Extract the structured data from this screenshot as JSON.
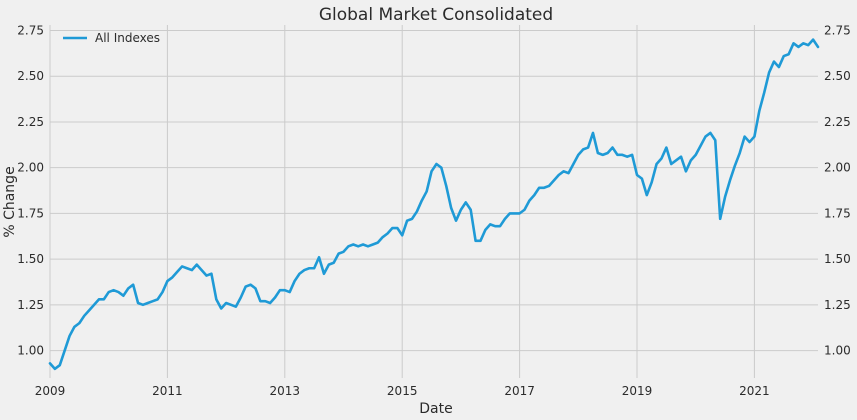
{
  "chart_data": {
    "type": "line",
    "title": "Global Market Consolidated",
    "xlabel": "Date",
    "ylabel": "% Change",
    "x_tick_labels": [
      "2009",
      "2011",
      "2013",
      "2015",
      "2017",
      "2019",
      "2021"
    ],
    "y_tick_labels": [
      "1.00",
      "1.25",
      "1.50",
      "1.75",
      "2.00",
      "2.25",
      "2.50",
      "2.75"
    ],
    "xlim": [
      "2009-01",
      "2022-02"
    ],
    "ylim": [
      0.85,
      2.78
    ],
    "grid": true,
    "right_axis": true,
    "legend_position": "top-left",
    "series": [
      {
        "name": "All Indexes",
        "color": "#1f9ad6",
        "points": [
          [
            "2009-01",
            0.93
          ],
          [
            "2009-02",
            0.9
          ],
          [
            "2009-03",
            0.92
          ],
          [
            "2009-04",
            1.0
          ],
          [
            "2009-05",
            1.08
          ],
          [
            "2009-06",
            1.13
          ],
          [
            "2009-07",
            1.15
          ],
          [
            "2009-08",
            1.19
          ],
          [
            "2009-09",
            1.22
          ],
          [
            "2009-10",
            1.25
          ],
          [
            "2009-11",
            1.28
          ],
          [
            "2009-12",
            1.28
          ],
          [
            "2010-01",
            1.32
          ],
          [
            "2010-02",
            1.33
          ],
          [
            "2010-03",
            1.32
          ],
          [
            "2010-04",
            1.3
          ],
          [
            "2010-05",
            1.34
          ],
          [
            "2010-06",
            1.36
          ],
          [
            "2010-07",
            1.26
          ],
          [
            "2010-08",
            1.25
          ],
          [
            "2010-09",
            1.26
          ],
          [
            "2010-10",
            1.27
          ],
          [
            "2010-11",
            1.28
          ],
          [
            "2010-12",
            1.32
          ],
          [
            "2011-01",
            1.38
          ],
          [
            "2011-02",
            1.4
          ],
          [
            "2011-03",
            1.43
          ],
          [
            "2011-04",
            1.46
          ],
          [
            "2011-05",
            1.45
          ],
          [
            "2011-06",
            1.44
          ],
          [
            "2011-07",
            1.47
          ],
          [
            "2011-08",
            1.44
          ],
          [
            "2011-09",
            1.41
          ],
          [
            "2011-10",
            1.42
          ],
          [
            "2011-11",
            1.28
          ],
          [
            "2011-12",
            1.23
          ],
          [
            "2012-01",
            1.26
          ],
          [
            "2012-02",
            1.25
          ],
          [
            "2012-03",
            1.24
          ],
          [
            "2012-04",
            1.29
          ],
          [
            "2012-05",
            1.35
          ],
          [
            "2012-06",
            1.36
          ],
          [
            "2012-07",
            1.34
          ],
          [
            "2012-08",
            1.27
          ],
          [
            "2012-09",
            1.27
          ],
          [
            "2012-10",
            1.26
          ],
          [
            "2012-11",
            1.29
          ],
          [
            "2012-12",
            1.33
          ],
          [
            "2013-01",
            1.33
          ],
          [
            "2013-02",
            1.32
          ],
          [
            "2013-03",
            1.38
          ],
          [
            "2013-04",
            1.42
          ],
          [
            "2013-05",
            1.44
          ],
          [
            "2013-06",
            1.45
          ],
          [
            "2013-07",
            1.45
          ],
          [
            "2013-08",
            1.51
          ],
          [
            "2013-09",
            1.42
          ],
          [
            "2013-10",
            1.47
          ],
          [
            "2013-11",
            1.48
          ],
          [
            "2013-12",
            1.53
          ],
          [
            "2014-01",
            1.54
          ],
          [
            "2014-02",
            1.57
          ],
          [
            "2014-03",
            1.58
          ],
          [
            "2014-04",
            1.57
          ],
          [
            "2014-05",
            1.58
          ],
          [
            "2014-06",
            1.57
          ],
          [
            "2014-07",
            1.58
          ],
          [
            "2014-08",
            1.59
          ],
          [
            "2014-09",
            1.62
          ],
          [
            "2014-10",
            1.64
          ],
          [
            "2014-11",
            1.67
          ],
          [
            "2014-12",
            1.67
          ],
          [
            "2015-01",
            1.63
          ],
          [
            "2015-02",
            1.71
          ],
          [
            "2015-03",
            1.72
          ],
          [
            "2015-04",
            1.76
          ],
          [
            "2015-05",
            1.82
          ],
          [
            "2015-06",
            1.87
          ],
          [
            "2015-07",
            1.98
          ],
          [
            "2015-08",
            2.02
          ],
          [
            "2015-09",
            2.0
          ],
          [
            "2015-10",
            1.9
          ],
          [
            "2015-11",
            1.78
          ],
          [
            "2015-12",
            1.71
          ],
          [
            "2016-01",
            1.77
          ],
          [
            "2016-02",
            1.81
          ],
          [
            "2016-03",
            1.77
          ],
          [
            "2016-04",
            1.6
          ],
          [
            "2016-05",
            1.6
          ],
          [
            "2016-06",
            1.66
          ],
          [
            "2016-07",
            1.69
          ],
          [
            "2016-08",
            1.68
          ],
          [
            "2016-09",
            1.68
          ],
          [
            "2016-10",
            1.72
          ],
          [
            "2016-11",
            1.75
          ],
          [
            "2016-12",
            1.75
          ],
          [
            "2017-01",
            1.75
          ],
          [
            "2017-02",
            1.77
          ],
          [
            "2017-03",
            1.82
          ],
          [
            "2017-04",
            1.85
          ],
          [
            "2017-05",
            1.89
          ],
          [
            "2017-06",
            1.89
          ],
          [
            "2017-07",
            1.9
          ],
          [
            "2017-08",
            1.93
          ],
          [
            "2017-09",
            1.96
          ],
          [
            "2017-10",
            1.98
          ],
          [
            "2017-11",
            1.97
          ],
          [
            "2017-12",
            2.02
          ],
          [
            "2018-01",
            2.07
          ],
          [
            "2018-02",
            2.1
          ],
          [
            "2018-03",
            2.11
          ],
          [
            "2018-04",
            2.19
          ],
          [
            "2018-05",
            2.08
          ],
          [
            "2018-06",
            2.07
          ],
          [
            "2018-07",
            2.08
          ],
          [
            "2018-08",
            2.11
          ],
          [
            "2018-09",
            2.07
          ],
          [
            "2018-10",
            2.07
          ],
          [
            "2018-11",
            2.06
          ],
          [
            "2018-12",
            2.07
          ],
          [
            "2019-01",
            1.96
          ],
          [
            "2019-02",
            1.94
          ],
          [
            "2019-03",
            1.85
          ],
          [
            "2019-04",
            1.92
          ],
          [
            "2019-05",
            2.02
          ],
          [
            "2019-06",
            2.05
          ],
          [
            "2019-07",
            2.11
          ],
          [
            "2019-08",
            2.02
          ],
          [
            "2019-09",
            2.04
          ],
          [
            "2019-10",
            2.06
          ],
          [
            "2019-11",
            1.98
          ],
          [
            "2019-12",
            2.04
          ],
          [
            "2020-01",
            2.07
          ],
          [
            "2020-02",
            2.12
          ],
          [
            "2020-03",
            2.17
          ],
          [
            "2020-04",
            2.19
          ],
          [
            "2020-05",
            2.15
          ],
          [
            "2020-06",
            1.72
          ],
          [
            "2020-07",
            1.84
          ],
          [
            "2020-08",
            1.93
          ],
          [
            "2020-09",
            2.01
          ],
          [
            "2020-10",
            2.08
          ],
          [
            "2020-11",
            2.17
          ],
          [
            "2020-12",
            2.14
          ],
          [
            "2021-01",
            2.17
          ],
          [
            "2021-02",
            2.31
          ],
          [
            "2021-03",
            2.41
          ],
          [
            "2021-04",
            2.52
          ],
          [
            "2021-05",
            2.58
          ],
          [
            "2021-06",
            2.55
          ],
          [
            "2021-07",
            2.61
          ],
          [
            "2021-08",
            2.62
          ],
          [
            "2021-09",
            2.68
          ],
          [
            "2021-10",
            2.66
          ],
          [
            "2021-11",
            2.68
          ],
          [
            "2021-12",
            2.67
          ],
          [
            "2022-01",
            2.7
          ],
          [
            "2022-02",
            2.66
          ]
        ]
      }
    ]
  }
}
